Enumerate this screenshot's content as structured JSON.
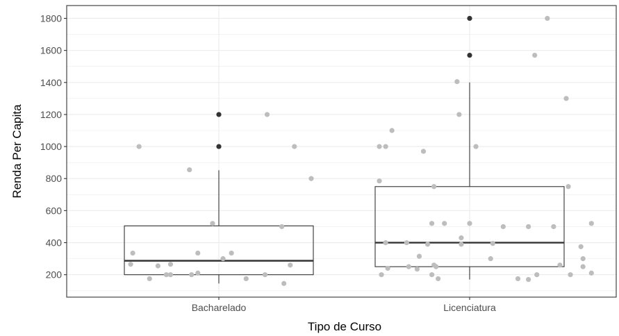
{
  "chart_data": {
    "type": "boxplot",
    "xlabel": "Tipo de Curso",
    "ylabel": "Renda Per Capita",
    "ylim": [
      60,
      1880
    ],
    "y_ticks": [
      200,
      400,
      600,
      800,
      1000,
      1200,
      1400,
      1600,
      1800
    ],
    "categories": [
      "Bacharelado",
      "Licenciatura"
    ],
    "grid": true,
    "colors": {
      "jitter_point": "#bdbdbd",
      "outlier_point": "#333333",
      "box_stroke": "#333333",
      "grid": "#ebebeb",
      "panel_border": "#333333"
    },
    "boxes": [
      {
        "category": "Bacharelado",
        "whisker_low": 145,
        "q1": 200,
        "median": 287,
        "q3": 505,
        "whisker_high": 852,
        "outliers": [
          1000,
          1200
        ]
      },
      {
        "category": "Licenciatura",
        "whisker_low": 170,
        "q1": 250,
        "median": 400,
        "q3": 750,
        "whisker_high": 1400,
        "outliers": [
          1570,
          1800
        ]
      }
    ],
    "points": [
      {
        "category": "Bacharelado",
        "jitter": -0.38,
        "y": 1000
      },
      {
        "category": "Bacharelado",
        "jitter": -0.41,
        "y": 335
      },
      {
        "category": "Bacharelado",
        "jitter": -0.42,
        "y": 265
      },
      {
        "category": "Bacharelado",
        "jitter": -0.33,
        "y": 175
      },
      {
        "category": "Bacharelado",
        "jitter": -0.29,
        "y": 255
      },
      {
        "category": "Bacharelado",
        "jitter": -0.25,
        "y": 200
      },
      {
        "category": "Bacharelado",
        "jitter": -0.23,
        "y": 265
      },
      {
        "category": "Bacharelado",
        "jitter": -0.23,
        "y": 200
      },
      {
        "category": "Bacharelado",
        "jitter": -0.14,
        "y": 855
      },
      {
        "category": "Bacharelado",
        "jitter": -0.13,
        "y": 200
      },
      {
        "category": "Bacharelado",
        "jitter": -0.1,
        "y": 335
      },
      {
        "category": "Bacharelado",
        "jitter": -0.1,
        "y": 210
      },
      {
        "category": "Bacharelado",
        "jitter": -0.03,
        "y": 520
      },
      {
        "category": "Bacharelado",
        "jitter": 0.02,
        "y": 300
      },
      {
        "category": "Bacharelado",
        "jitter": 0.06,
        "y": 335
      },
      {
        "category": "Bacharelado",
        "jitter": 0.13,
        "y": 175
      },
      {
        "category": "Bacharelado",
        "jitter": 0.23,
        "y": 1200
      },
      {
        "category": "Bacharelado",
        "jitter": 0.22,
        "y": 200
      },
      {
        "category": "Bacharelado",
        "jitter": 0.3,
        "y": 500
      },
      {
        "category": "Bacharelado",
        "jitter": 0.31,
        "y": 145
      },
      {
        "category": "Bacharelado",
        "jitter": 0.34,
        "y": 260
      },
      {
        "category": "Bacharelado",
        "jitter": 0.36,
        "y": 1000
      },
      {
        "category": "Bacharelado",
        "jitter": 0.44,
        "y": 800
      },
      {
        "category": "Licenciatura",
        "jitter": -0.43,
        "y": 785
      },
      {
        "category": "Licenciatura",
        "jitter": -0.43,
        "y": 1000
      },
      {
        "category": "Licenciatura",
        "jitter": -0.4,
        "y": 1000
      },
      {
        "category": "Licenciatura",
        "jitter": -0.4,
        "y": 400
      },
      {
        "category": "Licenciatura",
        "jitter": -0.39,
        "y": 240
      },
      {
        "category": "Licenciatura",
        "jitter": -0.42,
        "y": 200
      },
      {
        "category": "Licenciatura",
        "jitter": -0.37,
        "y": 1100
      },
      {
        "category": "Licenciatura",
        "jitter": -0.3,
        "y": 400
      },
      {
        "category": "Licenciatura",
        "jitter": -0.29,
        "y": 250
      },
      {
        "category": "Licenciatura",
        "jitter": -0.25,
        "y": 235
      },
      {
        "category": "Licenciatura",
        "jitter": -0.24,
        "y": 315
      },
      {
        "category": "Licenciatura",
        "jitter": -0.22,
        "y": 970
      },
      {
        "category": "Licenciatura",
        "jitter": -0.2,
        "y": 390
      },
      {
        "category": "Licenciatura",
        "jitter": -0.18,
        "y": 520
      },
      {
        "category": "Licenciatura",
        "jitter": -0.17,
        "y": 750
      },
      {
        "category": "Licenciatura",
        "jitter": -0.17,
        "y": 260
      },
      {
        "category": "Licenciatura",
        "jitter": -0.16,
        "y": 250
      },
      {
        "category": "Licenciatura",
        "jitter": -0.18,
        "y": 200
      },
      {
        "category": "Licenciatura",
        "jitter": -0.15,
        "y": 175
      },
      {
        "category": "Licenciatura",
        "jitter": -0.12,
        "y": 520
      },
      {
        "category": "Licenciatura",
        "jitter": -0.06,
        "y": 1405
      },
      {
        "category": "Licenciatura",
        "jitter": -0.05,
        "y": 1200
      },
      {
        "category": "Licenciatura",
        "jitter": -0.04,
        "y": 430
      },
      {
        "category": "Licenciatura",
        "jitter": -0.04,
        "y": 390
      },
      {
        "category": "Licenciatura",
        "jitter": 0.0,
        "y": 520
      },
      {
        "category": "Licenciatura",
        "jitter": 0.03,
        "y": 1000
      },
      {
        "category": "Licenciatura",
        "jitter": 0.1,
        "y": 300
      },
      {
        "category": "Licenciatura",
        "jitter": 0.11,
        "y": 395
      },
      {
        "category": "Licenciatura",
        "jitter": 0.16,
        "y": 500
      },
      {
        "category": "Licenciatura",
        "jitter": 0.23,
        "y": 175
      },
      {
        "category": "Licenciatura",
        "jitter": 0.28,
        "y": 500
      },
      {
        "category": "Licenciatura",
        "jitter": 0.28,
        "y": 170
      },
      {
        "category": "Licenciatura",
        "jitter": 0.31,
        "y": 1570
      },
      {
        "category": "Licenciatura",
        "jitter": 0.32,
        "y": 200
      },
      {
        "category": "Licenciatura",
        "jitter": 0.37,
        "y": 1800
      },
      {
        "category": "Licenciatura",
        "jitter": 0.4,
        "y": 500
      },
      {
        "category": "Licenciatura",
        "jitter": 0.43,
        "y": 260
      },
      {
        "category": "Licenciatura",
        "jitter": 0.46,
        "y": 1300
      },
      {
        "category": "Licenciatura",
        "jitter": 0.47,
        "y": 750
      },
      {
        "category": "Licenciatura",
        "jitter": 0.48,
        "y": 200
      },
      {
        "category": "Licenciatura",
        "jitter": 0.53,
        "y": 375
      },
      {
        "category": "Licenciatura",
        "jitter": 0.54,
        "y": 300
      },
      {
        "category": "Licenciatura",
        "jitter": 0.54,
        "y": 250
      },
      {
        "category": "Licenciatura",
        "jitter": 0.58,
        "y": 520
      },
      {
        "category": "Licenciatura",
        "jitter": 0.58,
        "y": 210
      }
    ]
  }
}
